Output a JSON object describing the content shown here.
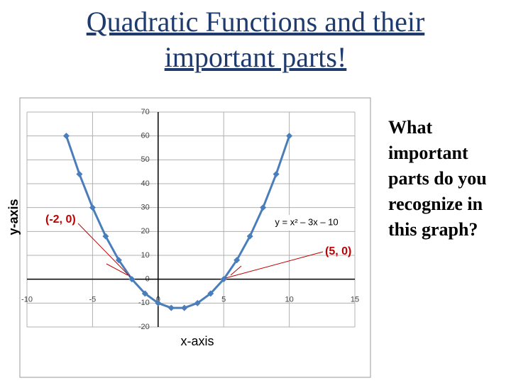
{
  "slide_title": "Quadratic Functions and their important parts!",
  "question_lines": [
    "What",
    "important",
    "parts do you",
    "recognize in",
    "this graph?"
  ],
  "chart_data": {
    "type": "line",
    "x": [
      -7,
      -6,
      -5,
      -4,
      -3,
      -2,
      -1,
      0,
      1,
      2,
      3,
      4,
      5,
      6,
      7,
      8,
      9,
      10
    ],
    "series": [
      {
        "color": "#4a7ebb",
        "values": [
          60,
          44,
          30,
          18,
          8,
          0,
          -6,
          -10,
          -12,
          -12,
          -10,
          -6,
          0,
          8,
          18,
          30,
          44,
          60
        ]
      }
    ],
    "xlim": [
      -10,
      15
    ],
    "xticks": [
      -10,
      -5,
      0,
      5,
      10,
      15
    ],
    "ylim": [
      -20,
      70
    ],
    "yticks": [
      -20,
      -10,
      0,
      10,
      20,
      30,
      40,
      50,
      60,
      70
    ],
    "grid": true,
    "x_label": "x-axis",
    "y_label": "y-axis",
    "equation": "y = x² – 3x – 10",
    "annotations": [
      "(-2, 0)",
      "(5, 0)"
    ]
  }
}
